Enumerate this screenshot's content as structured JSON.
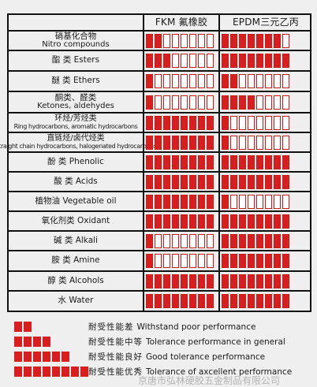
{
  "header": {
    "fkm": "FKM 氟橡胶",
    "epdm": "EPDM三元乙丙"
  },
  "rows": [
    {
      "zh": "硝基化合物",
      "en": "Nitro compounds",
      "fkm": 2,
      "epdm": 7
    },
    {
      "zh": "酯 类",
      "en": "Esters",
      "fkm": 3,
      "epdm": 8
    },
    {
      "zh": "醚 类",
      "en": "Ethers",
      "fkm": 1,
      "epdm": 2
    },
    {
      "zh": "酮类、醛类",
      "en": "Ketones, aldehydes",
      "fkm": 1,
      "epdm": 4
    },
    {
      "zh": "环烃/芳烃类",
      "en": "Ring hydrocarbons, aromatic hydrocarbons",
      "fkm": 8,
      "epdm": 1,
      "small": true
    },
    {
      "zh": "直链烃/卤代烃类",
      "en": "Straight chain hydrocarbons, halogenated hydrocarbons",
      "fkm": 8,
      "epdm": 1,
      "small": true
    },
    {
      "zh": "酚 类",
      "en": "Phenolic",
      "fkm": 8,
      "epdm": 8
    },
    {
      "zh": "酸 类",
      "en": "Acids",
      "fkm": 8,
      "epdm": 8
    },
    {
      "zh": "植物油",
      "en": "Vegetable oil",
      "fkm": 8,
      "epdm": 1
    },
    {
      "zh": "氧化剂类",
      "en": "Oxidant",
      "fkm": 8,
      "epdm": 8
    },
    {
      "zh": "碱 类",
      "en": "Alkali",
      "fkm": 1,
      "epdm": 8
    },
    {
      "zh": "胺 类",
      "en": "Amine",
      "fkm": 1,
      "epdm": 8
    },
    {
      "zh": "醇 类",
      "en": "Alcohols",
      "fkm": 8,
      "epdm": 8
    },
    {
      "zh": "水",
      "en": "Water",
      "fkm": 8,
      "epdm": 8
    }
  ],
  "legend": [
    {
      "zh": "耐受性能差",
      "en": "Withstand poor performance",
      "level": 1
    },
    {
      "zh": "耐受性能中等",
      "en": "Tolerance performance in general",
      "level": 2
    },
    {
      "zh": "耐受性能良好",
      "en": "Good tolerance performance",
      "level": 3
    },
    {
      "zh": "耐受性能优秀",
      "en": "Tolerance of axcellent performance",
      "level": 4
    }
  ],
  "watermark": "京唐市弘林硬胶五金制品有限公司",
  "colors": {
    "fill": "#d81e1e",
    "border": "#cc1c1c",
    "background": "#efefef"
  }
}
